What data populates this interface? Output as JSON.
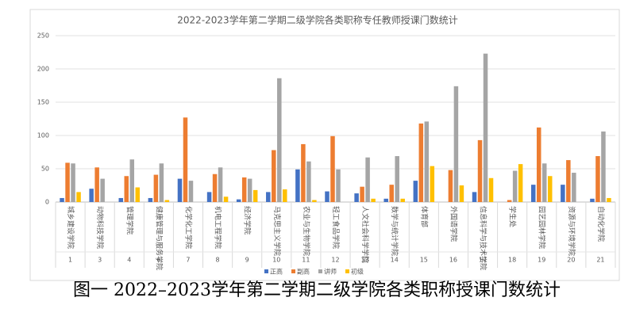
{
  "chart_data": {
    "type": "bar",
    "title": "2022-2023学年第二学期二级学院各类职称专任教师授课门数统计",
    "categories": [
      "城乡建设学院",
      "动物科技学院",
      "管理学院",
      "健康管理与服务学院",
      "化学化工学院",
      "机电工程学院",
      "经济学院",
      "马克思主义学院",
      "农业与生物学院",
      "轻工食品学院",
      "人文社会科学学院",
      "数学与统计学院",
      "体育部",
      "外国语学院",
      "信息科学与技术学院",
      "学生处",
      "园艺园林学院",
      "资源与环境学院",
      "自动化学院"
    ],
    "category_numbers": [
      "1",
      "3",
      "4",
      "6",
      "7",
      "8",
      "9",
      "10",
      "11",
      "12",
      "13",
      "14",
      "15",
      "16",
      "17",
      "18",
      "19",
      "20",
      "21"
    ],
    "series": [
      {
        "name": "正高",
        "color": "#4472c4",
        "values": [
          6,
          20,
          6,
          6,
          35,
          15,
          4,
          15,
          49,
          16,
          13,
          5,
          32,
          0,
          15,
          0,
          26,
          26,
          5
        ]
      },
      {
        "name": "副高",
        "color": "#ed7d31",
        "values": [
          59,
          52,
          39,
          41,
          127,
          42,
          37,
          78,
          87,
          99,
          23,
          26,
          118,
          48,
          93,
          3,
          112,
          63,
          69
        ]
      },
      {
        "name": "讲师",
        "color": "#a5a5a5",
        "values": [
          58,
          35,
          64,
          58,
          32,
          52,
          35,
          186,
          61,
          49,
          67,
          69,
          121,
          174,
          223,
          47,
          58,
          44,
          106
        ]
      },
      {
        "name": "初级",
        "color": "#ffc000",
        "values": [
          15,
          0,
          22,
          3,
          0,
          8,
          18,
          19,
          3,
          0,
          5,
          5,
          54,
          25,
          36,
          57,
          39,
          0,
          6
        ]
      }
    ],
    "ylim": [
      0,
      250
    ],
    "yticks": [
      0,
      50,
      100,
      150,
      200,
      250
    ],
    "grid": true,
    "legend": "bottom"
  },
  "caption": "图一 2022–2023学年第二学期二级学院各类职称授课门数统计"
}
